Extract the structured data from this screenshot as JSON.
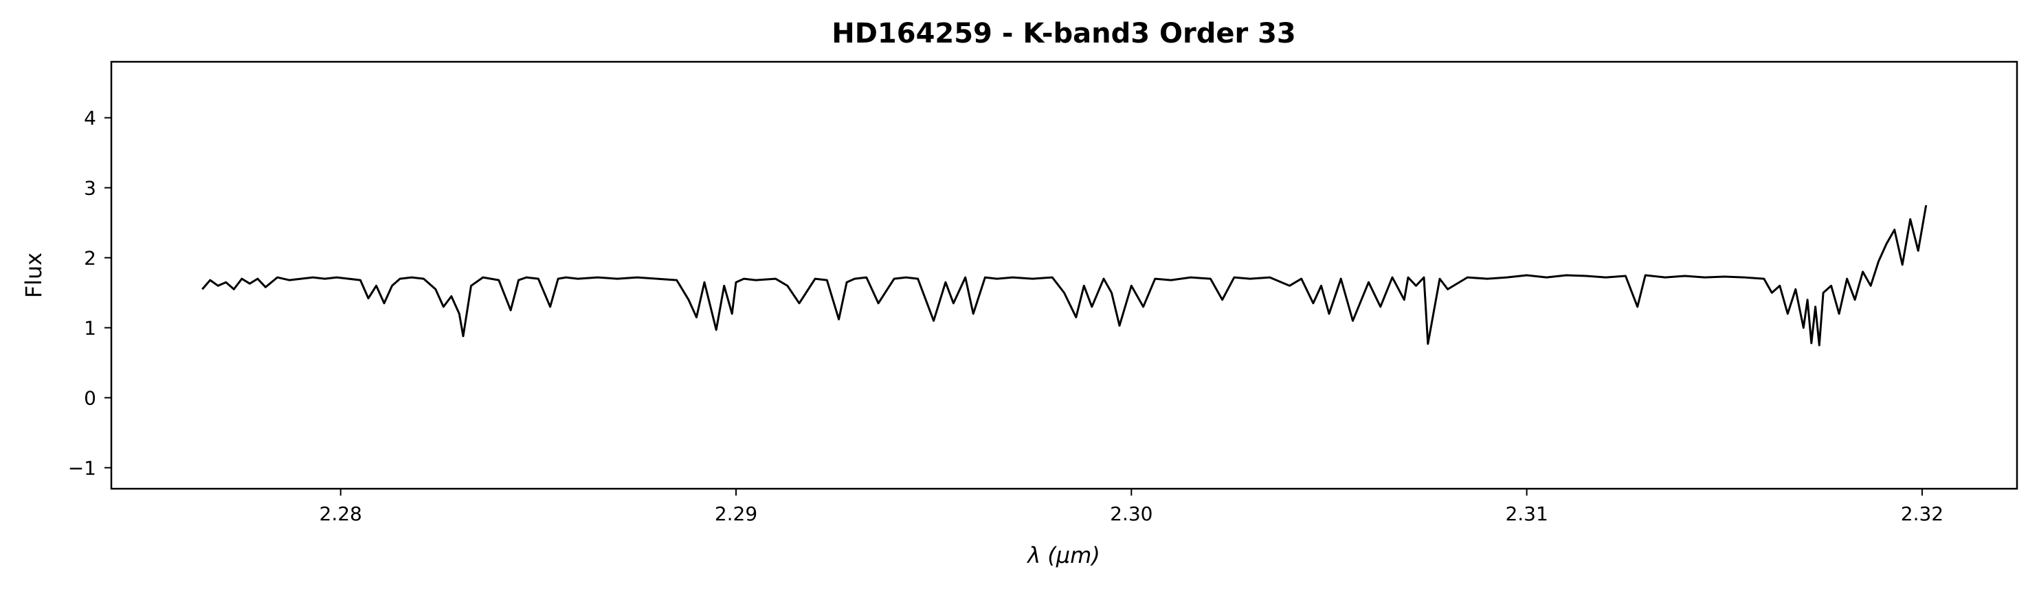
{
  "chart_data": {
    "type": "line",
    "title": "HD164259 - K-band3 Order 33",
    "xlabel": "λ (μm)",
    "ylabel": "Flux",
    "xlim": [
      2.2742,
      2.3224
    ],
    "ylim": [
      -1.3,
      4.8
    ],
    "grid": false,
    "legend": "none",
    "line_color": "#000000",
    "xticks": [
      2.28,
      2.29,
      2.3,
      2.31,
      2.32
    ],
    "xtick_labels": [
      "2.28",
      "2.29",
      "2.30",
      "2.31",
      "2.32"
    ],
    "yticks": [
      -1,
      0,
      1,
      2,
      3,
      4
    ],
    "ytick_labels": [
      "−1",
      "0",
      "1",
      "2",
      "3",
      "4"
    ],
    "series": [
      {
        "x": [
          2.2765,
          2.2767,
          2.2769,
          2.2771,
          2.2773,
          2.2775,
          2.2777,
          2.2779,
          2.2781,
          2.2784,
          2.2787,
          2.279,
          2.2793,
          2.2796,
          2.2799,
          2.2802,
          2.2805,
          2.2807,
          2.2809,
          2.2811,
          2.2813,
          2.2815,
          2.2818,
          2.2821,
          2.2824,
          2.2826,
          2.2828,
          2.283,
          2.2831,
          2.2833,
          2.2836,
          2.284,
          2.2843,
          2.2845,
          2.2847,
          2.285,
          2.2853,
          2.2855,
          2.2857,
          2.286,
          2.2865,
          2.287,
          2.2875,
          2.288,
          2.2885,
          2.2888,
          2.289,
          2.2892,
          2.2895,
          2.2897,
          2.2899,
          2.29,
          2.2902,
          2.2905,
          2.291,
          2.2913,
          2.2916,
          2.292,
          2.2923,
          2.2926,
          2.2928,
          2.293,
          2.2933,
          2.2936,
          2.294,
          2.2943,
          2.2946,
          2.295,
          2.2953,
          2.2955,
          2.2958,
          2.296,
          2.2963,
          2.2966,
          2.297,
          2.2975,
          2.298,
          2.2983,
          2.2986,
          2.2988,
          2.299,
          2.2993,
          2.2995,
          2.2997,
          2.3,
          2.3003,
          2.3006,
          2.301,
          2.3015,
          2.302,
          2.3023,
          2.3026,
          2.303,
          2.3035,
          2.304,
          2.3043,
          2.3046,
          2.3048,
          2.305,
          2.3053,
          2.3056,
          2.306,
          2.3063,
          2.3066,
          2.3069,
          2.307,
          2.3072,
          2.3074,
          2.3075,
          2.3078,
          2.308,
          2.3085,
          2.309,
          2.3095,
          2.31,
          2.3105,
          2.311,
          2.3115,
          2.312,
          2.3125,
          2.3128,
          2.313,
          2.3135,
          2.314,
          2.3145,
          2.315,
          2.3155,
          2.316,
          2.3162,
          2.3164,
          2.3166,
          2.3168,
          2.317,
          2.3171,
          2.3172,
          2.3173,
          2.3174,
          2.3175,
          2.3177,
          2.3179,
          2.3181,
          2.3183,
          2.3185,
          2.3187,
          2.3189,
          2.3191,
          2.3193,
          2.3195,
          2.3197,
          2.3199,
          2.3201
        ],
        "y": [
          1.55,
          1.68,
          1.6,
          1.65,
          1.55,
          1.7,
          1.63,
          1.7,
          1.58,
          1.72,
          1.68,
          1.7,
          1.72,
          1.7,
          1.72,
          1.7,
          1.68,
          1.42,
          1.6,
          1.35,
          1.6,
          1.7,
          1.72,
          1.7,
          1.55,
          1.3,
          1.45,
          1.2,
          0.88,
          1.6,
          1.72,
          1.68,
          1.25,
          1.68,
          1.72,
          1.7,
          1.3,
          1.7,
          1.72,
          1.7,
          1.72,
          1.7,
          1.72,
          1.7,
          1.68,
          1.4,
          1.15,
          1.65,
          0.97,
          1.6,
          1.2,
          1.65,
          1.7,
          1.68,
          1.7,
          1.6,
          1.35,
          1.7,
          1.68,
          1.12,
          1.65,
          1.7,
          1.72,
          1.35,
          1.7,
          1.72,
          1.7,
          1.1,
          1.65,
          1.35,
          1.72,
          1.2,
          1.72,
          1.7,
          1.72,
          1.7,
          1.72,
          1.5,
          1.15,
          1.6,
          1.3,
          1.7,
          1.5,
          1.03,
          1.6,
          1.3,
          1.7,
          1.68,
          1.72,
          1.7,
          1.4,
          1.72,
          1.7,
          1.72,
          1.6,
          1.7,
          1.35,
          1.6,
          1.2,
          1.7,
          1.1,
          1.65,
          1.3,
          1.72,
          1.4,
          1.72,
          1.6,
          1.72,
          0.77,
          1.7,
          1.55,
          1.72,
          1.7,
          1.72,
          1.75,
          1.72,
          1.75,
          1.74,
          1.72,
          1.74,
          1.3,
          1.75,
          1.72,
          1.74,
          1.72,
          1.73,
          1.72,
          1.7,
          1.5,
          1.6,
          1.2,
          1.55,
          1.0,
          1.4,
          0.78,
          1.3,
          0.75,
          1.5,
          1.6,
          1.2,
          1.7,
          1.4,
          1.8,
          1.6,
          1.95,
          2.2,
          2.4,
          1.9,
          2.55,
          2.1,
          2.75
        ]
      }
    ]
  }
}
